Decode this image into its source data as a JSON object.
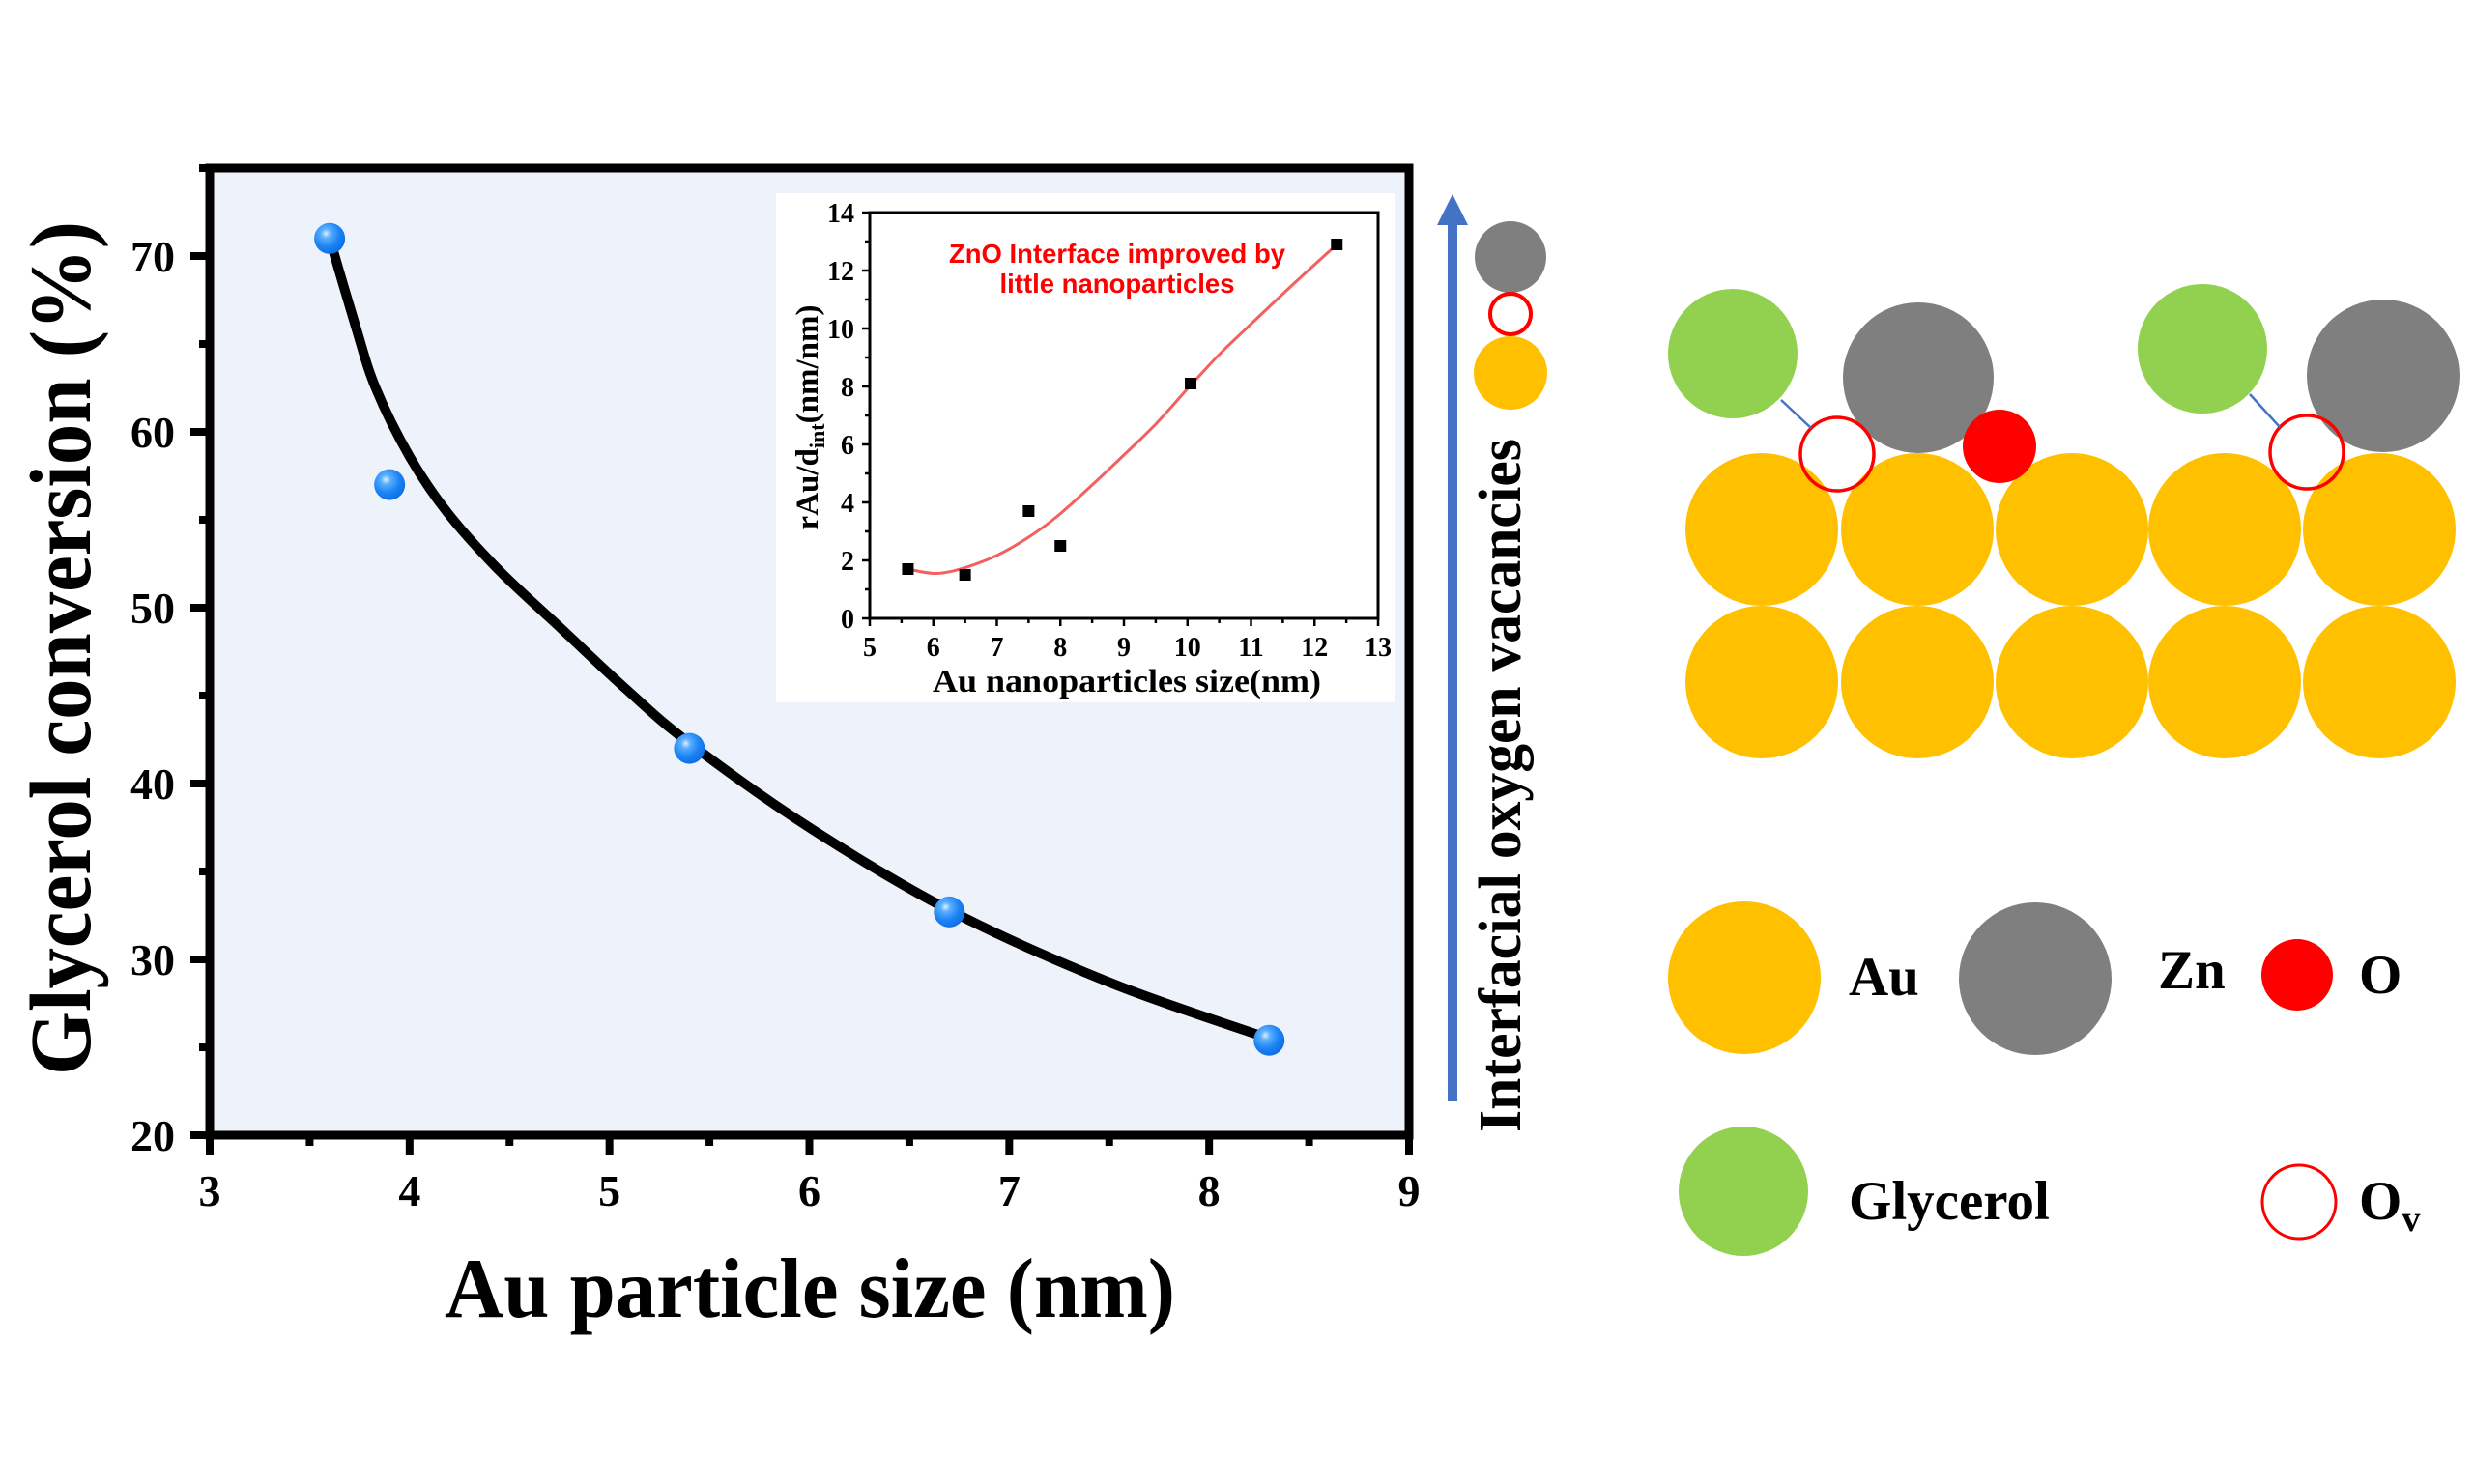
{
  "colors": {
    "gold": "#FFC000",
    "gray": "#7F7F7F",
    "red": "#FF0000",
    "green": "#92D050",
    "arrow": "#4472C4",
    "plot_bg": "#EEF2FA",
    "inset_bg": "#FFFFFF",
    "inset_fit": "#F26060",
    "annotation": "#FF0000"
  },
  "chart_data": [
    {
      "type": "scatter",
      "xlabel": "Au particle size (nm)",
      "ylabel": "Glycerol conversion (%)",
      "xlim": [
        3,
        9
      ],
      "ylim": [
        20,
        75
      ],
      "x_tick_values": [
        3,
        4,
        5,
        6,
        7,
        8,
        9
      ],
      "x_ticks": [
        "3",
        "4",
        "5",
        "6",
        "7",
        "8",
        "9"
      ],
      "y_tick_values": [
        20,
        30,
        40,
        50,
        60,
        70
      ],
      "y_ticks": [
        "20",
        "30",
        "40",
        "50",
        "60",
        "70"
      ],
      "grid": false,
      "legend": "none",
      "series": [
        {
          "name": "Glycerol conversion",
          "kind": "points",
          "marker": "sphere",
          "x": [
            3.6,
            3.9,
            5.4,
            6.7,
            8.3
          ],
          "y": [
            71.0,
            57.0,
            42.0,
            32.7,
            25.4
          ]
        },
        {
          "name": "Fit",
          "kind": "curve",
          "x": [
            3.6,
            3.73,
            3.83,
            4.0,
            4.19,
            4.45,
            4.76,
            5.08,
            5.4,
            6.0,
            6.7,
            7.5,
            8.3
          ],
          "y": [
            71.0,
            66.0,
            62.5,
            58.6,
            55.4,
            52.1,
            48.8,
            45.4,
            42.3,
            37.5,
            32.8,
            28.7,
            25.5
          ]
        }
      ]
    },
    {
      "type": "scatter",
      "annotation": [
        "ZnO Interface improved by",
        "little nanoparticles"
      ],
      "xlabel": "Au nanoparticles size(nm)",
      "ylabel": {
        "main": "rAu/d",
        "sub": "int",
        "unit": "(nm/nm)"
      },
      "xlim": [
        5,
        13
      ],
      "ylim": [
        0,
        14
      ],
      "x_tick_values": [
        5,
        6,
        7,
        8,
        9,
        10,
        11,
        12,
        13
      ],
      "x_ticks": [
        "5",
        "6",
        "7",
        "8",
        "9",
        "10",
        "11",
        "12",
        "13"
      ],
      "y_tick_values": [
        0,
        2,
        4,
        6,
        8,
        10,
        12,
        14
      ],
      "y_ticks": [
        "0",
        "2",
        "4",
        "6",
        "8",
        "10",
        "12",
        "14"
      ],
      "grid": false,
      "legend": "none",
      "series": [
        {
          "name": "rAu/dint",
          "kind": "points",
          "marker": "square",
          "x": [
            5.6,
            6.5,
            7.5,
            8.0,
            10.05,
            12.35
          ],
          "y": [
            1.7,
            1.5,
            3.7,
            2.5,
            8.1,
            12.9
          ]
        },
        {
          "name": "Fit",
          "kind": "curve",
          "x": [
            5.6,
            6.05,
            6.5,
            7.0,
            7.5,
            7.95,
            8.5,
            9.05,
            9.5,
            10.03,
            10.5,
            11.07,
            11.7,
            12.35
          ],
          "y": [
            1.7,
            1.55,
            1.75,
            2.17,
            2.8,
            3.52,
            4.6,
            5.74,
            6.7,
            7.99,
            9.1,
            10.3,
            11.6,
            12.9
          ]
        }
      ]
    }
  ],
  "side_label": "Interfacial oxygen vacancies",
  "legend": {
    "au": "Au",
    "zn": "Zn",
    "o": "O",
    "glycerol": "Glycerol",
    "vacancy_symbol": "O",
    "vacancy_sub": "v"
  }
}
